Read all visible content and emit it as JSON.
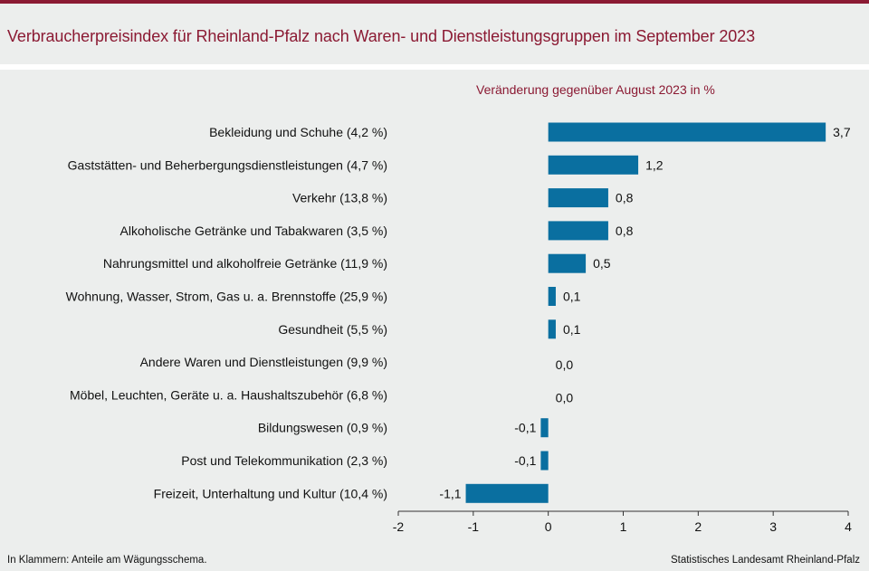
{
  "header": {
    "title": "Verbraucherpreisindex für Rheinland-Pfalz nach Waren- und Dienstleistungsgruppen im September 2023"
  },
  "chart_data": {
    "type": "bar",
    "orientation": "horizontal",
    "subtitle": "Veränderung gegenüber August 2023 in %",
    "categories": [
      "Bekleidung und Schuhe (4,2 %)",
      "Gaststätten- und Beherbergungsdienstleistungen (4,7 %)",
      "Verkehr (13,8 %)",
      "Alkoholische Getränke und Tabakwaren (3,5 %)",
      "Nahrungsmittel und alkoholfreie Getränke (11,9 %)",
      "Wohnung, Wasser, Strom, Gas u. a. Brennstoffe (25,9 %)",
      "Gesundheit (5,5 %)",
      "Andere Waren und Dienstleistungen (9,9 %)",
      "Möbel, Leuchten, Geräte u. a. Haushaltszubehör (6,8 %)",
      "Bildungswesen (0,9 %)",
      "Post und Telekommunikation (2,3 %)",
      "Freizeit, Unterhaltung und Kultur (10,4 %)"
    ],
    "values": [
      3.7,
      1.2,
      0.8,
      0.8,
      0.5,
      0.1,
      0.1,
      0.0,
      0.0,
      -0.1,
      -0.1,
      -1.1
    ],
    "value_labels": [
      "3,7",
      "1,2",
      "0,8",
      "0,8",
      "0,5",
      "0,1",
      "0,1",
      "0,0",
      "0,0",
      "-0,1",
      "-0,1",
      "-1,1"
    ],
    "xlim": [
      -2,
      4
    ],
    "xticks": [
      -2,
      -1,
      0,
      1,
      2,
      3,
      4
    ],
    "xtick_labels": [
      "-2",
      "-1",
      "0",
      "1",
      "2",
      "3",
      "4"
    ],
    "bar_color": "#0a6fa0",
    "grid": false,
    "legend": "none"
  },
  "footer": {
    "note": "In Klammern: Anteile am Wägungsschema.",
    "source": "Statistisches Landesamt Rheinland-Pfalz"
  },
  "colors": {
    "accent": "#8b1a33",
    "background": "#eceeed"
  }
}
